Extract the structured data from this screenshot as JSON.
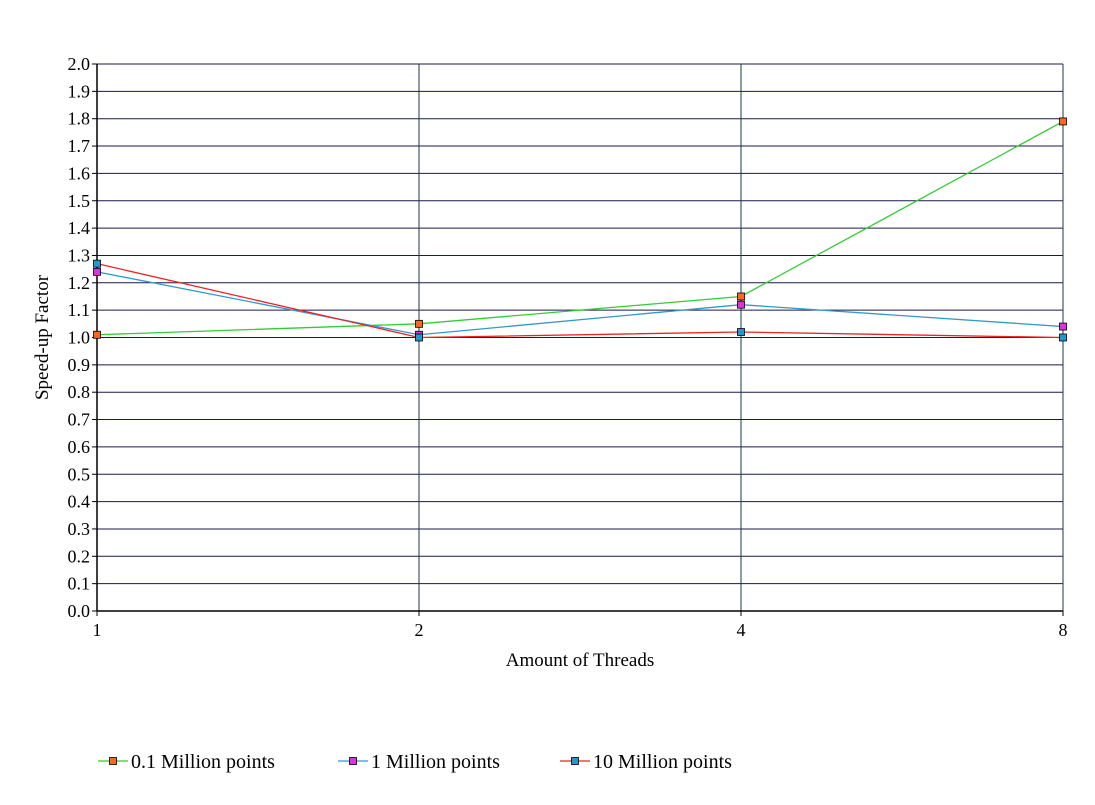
{
  "chart_data": {
    "type": "line",
    "x": [
      "1",
      "2",
      "4",
      "8"
    ],
    "xlabel": "Amount of Threads",
    "ylabel": "Speed-up Factor",
    "ylim": [
      0,
      2.0
    ],
    "yticks": [
      "0.0",
      "0.1",
      "0.2",
      "0.3",
      "0.4",
      "0.5",
      "0.6",
      "0.7",
      "0.8",
      "0.9",
      "1.0",
      "1.1",
      "1.2",
      "1.3",
      "1.4",
      "1.5",
      "1.6",
      "1.7",
      "1.8",
      "1.9",
      "2.0"
    ],
    "grid": true,
    "legend_position": "bottom",
    "series": [
      {
        "name": "0.1 Million points",
        "values": [
          1.01,
          1.05,
          1.15,
          1.79
        ],
        "line_color": "#33cc33",
        "marker_color": "#ff6622"
      },
      {
        "name": "1 Million points",
        "values": [
          1.24,
          1.01,
          1.12,
          1.04
        ],
        "line_color": "#3399cc",
        "marker_color": "#dd33dd"
      },
      {
        "name": "10 Million points",
        "values": [
          1.27,
          1.0,
          1.02,
          1.0
        ],
        "line_color": "#ee2222",
        "marker_color": "#2299cc"
      }
    ]
  }
}
